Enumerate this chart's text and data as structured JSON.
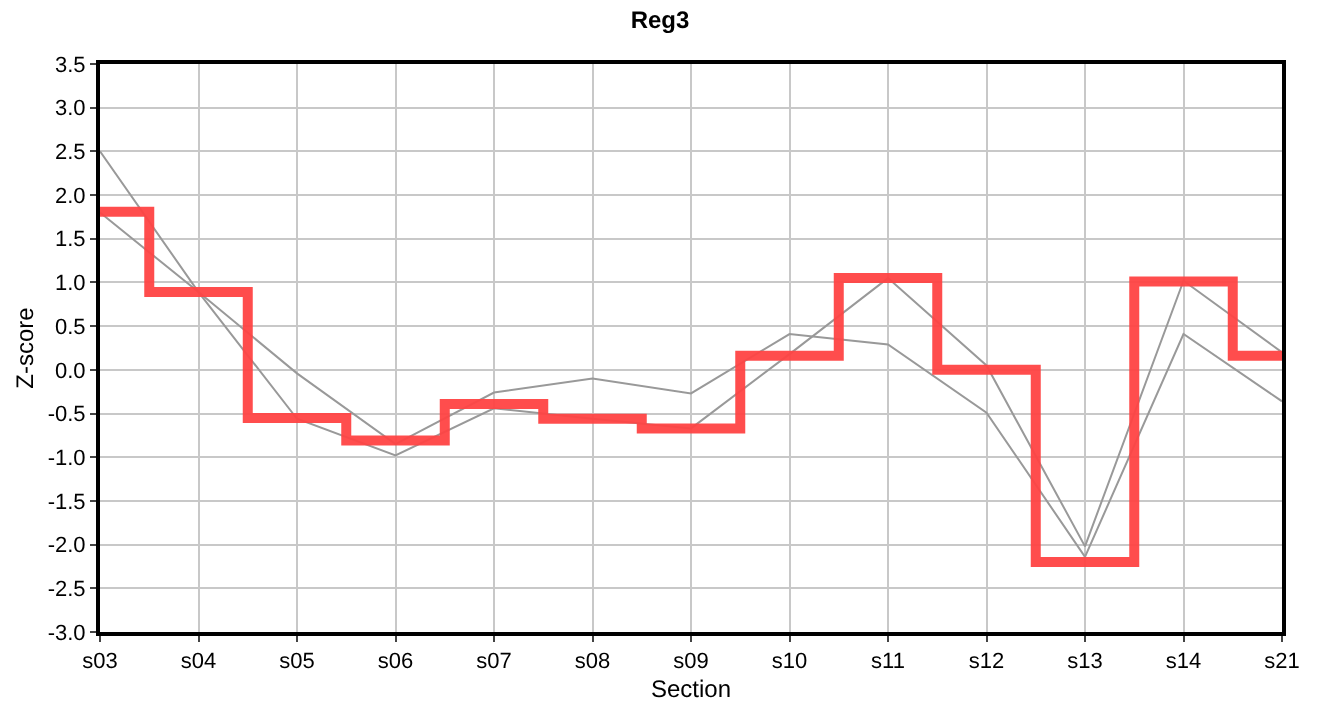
{
  "chart_data": {
    "type": "line",
    "title": "Reg3",
    "xlabel": "Section",
    "ylabel": "Z-score",
    "categories": [
      "s03",
      "s04",
      "s05",
      "s06",
      "s07",
      "s08",
      "s09",
      "s10",
      "s11",
      "s12",
      "s13",
      "s14",
      "s21"
    ],
    "series": [
      {
        "color": "#999999",
        "values": [
          2.5,
          0.89,
          -0.56,
          -0.98,
          -0.44,
          -0.56,
          -0.67,
          0.18,
          1.05,
          0.05,
          -2.02,
          1.02,
          0.2
        ]
      },
      {
        "color": "#999999",
        "values": [
          1.8,
          0.89,
          -0.04,
          -0.85,
          -0.26,
          -0.1,
          -0.27,
          0.41,
          0.29,
          -0.49,
          -2.14,
          0.41,
          -0.36
        ]
      },
      {
        "type": "step",
        "color": "#ff4444",
        "values": [
          1.81,
          0.89,
          -0.55,
          -0.81,
          -0.39,
          -0.56,
          -0.67,
          0.16,
          1.05,
          0.0,
          -2.2,
          1.01,
          0.16
        ]
      }
    ],
    "ylim": [
      -3,
      3.5
    ],
    "yticks": [
      {
        "value": -3,
        "label": "-3.0"
      },
      {
        "value": -2.5,
        "label": "-2.5"
      },
      {
        "value": -2,
        "label": "-2.0"
      },
      {
        "value": -1.5,
        "label": "-1.5"
      },
      {
        "value": -1,
        "label": "-1.0"
      },
      {
        "value": -0.5,
        "label": "-0.5"
      },
      {
        "value": 0,
        "label": "0.0"
      },
      {
        "value": 0.5,
        "label": "0.5"
      },
      {
        "value": 1,
        "label": "1.0"
      },
      {
        "value": 1.5,
        "label": "1.5"
      },
      {
        "value": 2,
        "label": "2.0"
      },
      {
        "value": 2.5,
        "label": "2.5"
      },
      {
        "value": 3,
        "label": "3.0"
      },
      {
        "value": 3.5,
        "label": "3.5"
      }
    ],
    "grid": true
  }
}
